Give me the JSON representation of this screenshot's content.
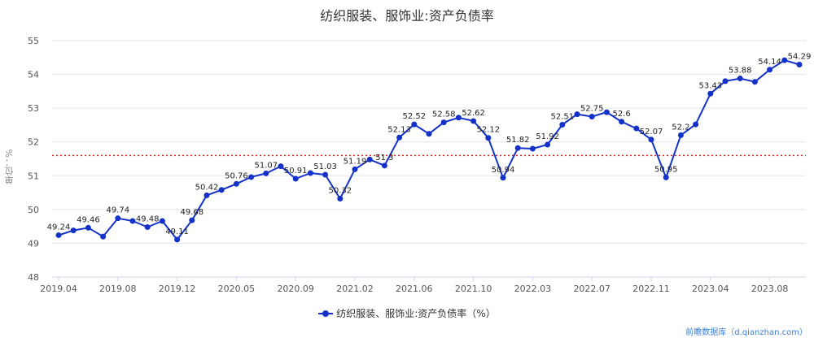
{
  "title": "纺织服装、服饰业:资产负债率",
  "legend_label": "纺织服装、服饰业:资产负债率（%）",
  "source_text": "前瞻数据库（d.qianzhan.com）",
  "colors": {
    "series": "#1432c8",
    "reference_line": "#e02020",
    "grid": "#e6e6e6",
    "axis_text": "#555555"
  },
  "chart_data": {
    "type": "line",
    "title": "纺织服装、服饰业:资产负债率",
    "ylabel": "单位：%",
    "ylim": [
      48,
      55
    ],
    "yticks": [
      48,
      49,
      50,
      51,
      52,
      53,
      54,
      55
    ],
    "grid": true,
    "legend_position": "bottom-center",
    "x_tick_labels": [
      "2019.04",
      "2019.08",
      "2019.12",
      "2020.05",
      "2020.09",
      "2021.02",
      "2021.06",
      "2021.10",
      "2022.03",
      "2022.07",
      "2022.11",
      "2023.04",
      "2023.08"
    ],
    "x_tick_indices": [
      0,
      4,
      8,
      12,
      16,
      20,
      24,
      28,
      32,
      36,
      40,
      44,
      48
    ],
    "reference_line": {
      "value": 51.6,
      "style": "dotted"
    },
    "series": [
      {
        "name": "纺织服装、服饰业:资产负债率（%）",
        "values": [
          49.24,
          49.38,
          49.46,
          49.2,
          49.74,
          49.66,
          49.48,
          49.66,
          49.11,
          49.68,
          50.42,
          50.58,
          50.76,
          50.96,
          51.07,
          51.28,
          50.91,
          51.08,
          51.03,
          50.32,
          51.19,
          51.48,
          51.3,
          52.13,
          52.52,
          52.24,
          52.58,
          52.72,
          52.62,
          52.12,
          50.94,
          51.82,
          51.8,
          51.92,
          52.51,
          52.82,
          52.75,
          52.88,
          52.6,
          52.4,
          52.07,
          50.95,
          52.2,
          52.52,
          53.43,
          53.8,
          53.88,
          53.78,
          54.14,
          54.42,
          54.29
        ],
        "labels": [
          "49.24",
          "",
          "49.46",
          "",
          "49.74",
          "",
          "49.48",
          "",
          "49.11",
          "49.68",
          "50.42",
          "",
          "50.76",
          "",
          "51.07",
          "",
          "50.91",
          "",
          "51.03",
          "50.32",
          "51.19",
          "",
          "51.3",
          "52.13",
          "52.52",
          "",
          "52.58",
          "",
          "52.62",
          "52.12",
          "50.94",
          "51.82",
          "",
          "51.92",
          "52.51",
          "",
          "52.75",
          "",
          "52.6",
          "",
          "52.07",
          "50.95",
          "52.2",
          "",
          "53.43",
          "",
          "53.88",
          "",
          "54.14",
          "",
          "54.29"
        ]
      }
    ]
  }
}
